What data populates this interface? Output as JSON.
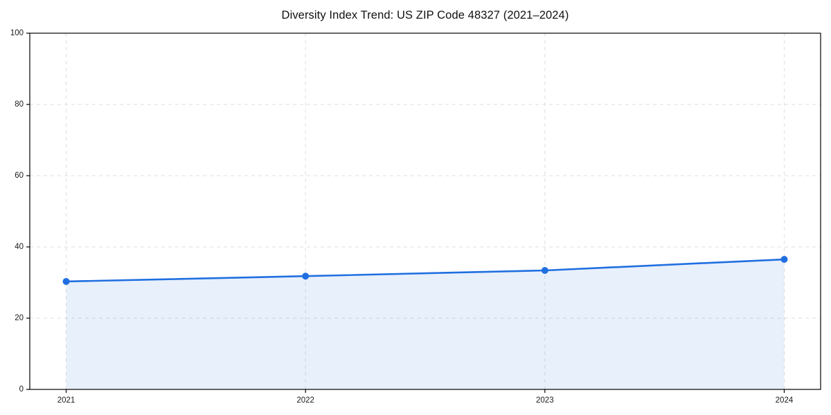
{
  "chart_data": {
    "type": "line",
    "title": "Diversity Index Trend: US ZIP Code 48327 (2021–2024)",
    "categories": [
      "2021",
      "2022",
      "2023",
      "2024"
    ],
    "series": [
      {
        "name": "Diversity Index",
        "values": [
          30.3,
          31.8,
          33.4,
          36.5
        ]
      }
    ],
    "xlabel": "",
    "ylabel": "",
    "ylim": [
      0,
      100
    ],
    "y_ticks": [
      0,
      20,
      40,
      60,
      80,
      100
    ],
    "grid": true,
    "grid_style": "dashed",
    "legend": false,
    "marker": "circle",
    "colors": {
      "line": "#1f6fe0",
      "marker": "#1f6fe0",
      "fill": "#1f6fe0",
      "fill_opacity": 0.1,
      "grid": "#dedede",
      "axis": "#000000",
      "tick_label": "#1a1a1a",
      "background": "#ffffff"
    }
  }
}
